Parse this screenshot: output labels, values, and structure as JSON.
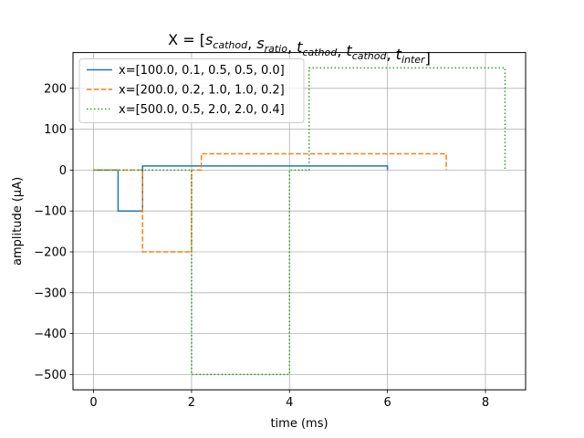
{
  "chart_data": {
    "type": "line",
    "title": "X = [s_cathod, s_ratio, t_cathod, t_cathod, t_inter]",
    "title_parts": [
      {
        "text": "X = [",
        "sub": ""
      },
      {
        "text": "s",
        "sub": "cathod"
      },
      {
        "text": ", ",
        "sub": ""
      },
      {
        "text": "s",
        "sub": "ratio"
      },
      {
        "text": ", ",
        "sub": ""
      },
      {
        "text": "t",
        "sub": "cathod"
      },
      {
        "text": ", ",
        "sub": ""
      },
      {
        "text": "t",
        "sub": "cathod"
      },
      {
        "text": ", ",
        "sub": ""
      },
      {
        "text": "t",
        "sub": "inter"
      },
      {
        "text": "]",
        "sub": ""
      }
    ],
    "xlabel": "time (ms)",
    "ylabel": "amplitude (μA)",
    "xlim": [
      -0.42,
      8.82
    ],
    "ylim": [
      -537.5,
      287.5
    ],
    "xticks": [
      0,
      2,
      4,
      6,
      8
    ],
    "yticks": [
      -500,
      -400,
      -300,
      -200,
      -100,
      0,
      100,
      200
    ],
    "grid": true,
    "legend_position": "upper-left",
    "series": [
      {
        "name": "x=[100.0, 0.1, 0.5, 0.5, 0.0]",
        "color": "#1f77b4",
        "dash": "solid",
        "x": [
          0,
          0.5,
          0.5,
          1.0,
          1.0,
          6.0,
          6.0
        ],
        "y": [
          0,
          0,
          -100,
          -100,
          10,
          10,
          0
        ]
      },
      {
        "name": "x=[200.0, 0.2, 1.0, 1.0, 0.2]",
        "color": "#ff7f0e",
        "dash": "dashed",
        "x": [
          0,
          1.0,
          1.0,
          2.0,
          2.0,
          2.2,
          2.2,
          7.2,
          7.2
        ],
        "y": [
          0,
          0,
          -200,
          -200,
          0,
          0,
          40,
          40,
          0
        ]
      },
      {
        "name": "x=[500.0, 0.5, 2.0, 2.0, 0.4]",
        "color": "#2ca02c",
        "dash": "dotted",
        "x": [
          0,
          2.0,
          2.0,
          4.0,
          4.0,
          4.4,
          4.4,
          8.4,
          8.4
        ],
        "y": [
          0,
          0,
          -500,
          -500,
          0,
          0,
          250,
          250,
          0
        ]
      }
    ]
  }
}
